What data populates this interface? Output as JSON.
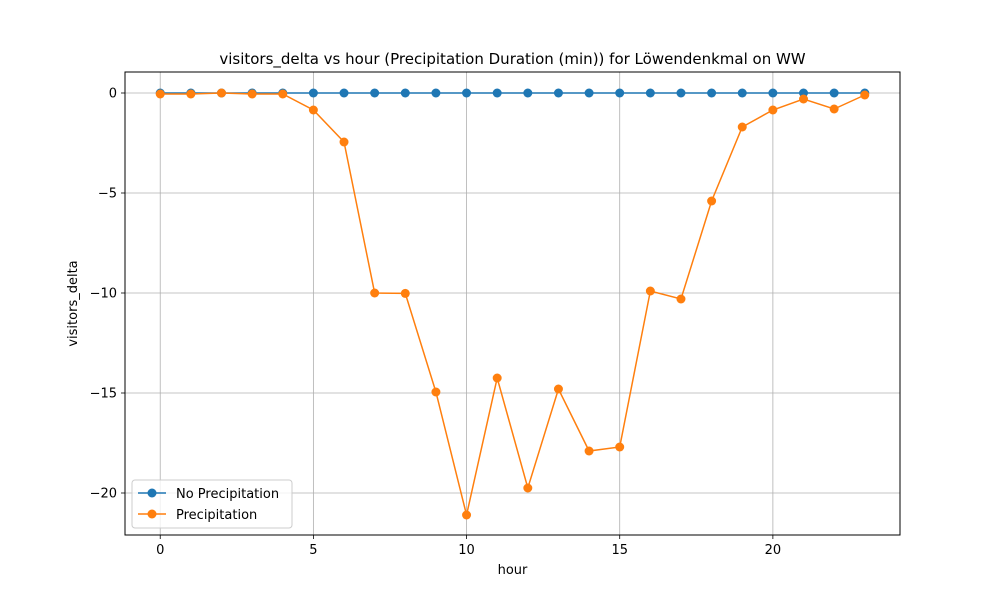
{
  "chart_data": {
    "type": "line",
    "title": "visitors_delta vs hour (Precipitation Duration (min)) for Löwendenkmal on WW",
    "xlabel": "hour",
    "ylabel": "visitors_delta",
    "xlim": [
      -1.15,
      24.15
    ],
    "ylim": [
      -22.1,
      1.05
    ],
    "xticks": [
      0,
      5,
      10,
      15,
      20
    ],
    "yticks": [
      0,
      -5,
      -10,
      -15,
      -20
    ],
    "xtick_labels": [
      "0",
      "5",
      "10",
      "15",
      "20"
    ],
    "ytick_labels": [
      "0",
      "−5",
      "−10",
      "−15",
      "−20"
    ],
    "grid": true,
    "legend_position": "lower-left",
    "x": [
      0,
      1,
      2,
      3,
      4,
      5,
      6,
      7,
      8,
      9,
      10,
      11,
      12,
      13,
      14,
      15,
      16,
      17,
      18,
      19,
      20,
      21,
      22,
      23
    ],
    "series": [
      {
        "name": "No Precipitation",
        "color": "#1f77b4",
        "values": [
          0,
          0,
          0,
          0,
          0,
          0,
          0,
          0,
          0,
          0,
          0,
          0,
          0,
          0,
          0,
          0,
          0,
          0,
          0,
          0,
          0,
          0,
          0,
          0
        ]
      },
      {
        "name": "Precipitation",
        "color": "#ff7f0e",
        "values": [
          -0.05,
          -0.05,
          0.0,
          -0.05,
          -0.05,
          -0.85,
          -2.45,
          -10.0,
          -10.02,
          -14.95,
          -21.1,
          -14.25,
          -19.75,
          -14.8,
          -17.9,
          -17.7,
          -9.9,
          -10.3,
          -5.4,
          -1.7,
          -0.85,
          -0.3,
          -0.8,
          -0.1
        ]
      }
    ]
  }
}
